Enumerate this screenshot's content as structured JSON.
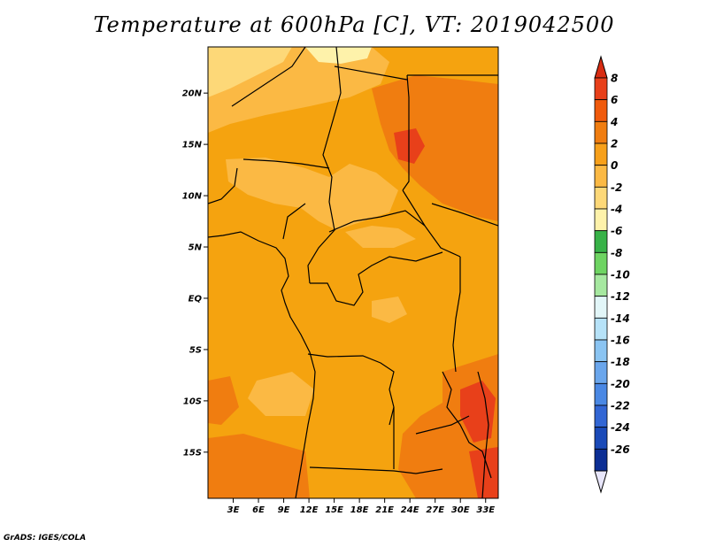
{
  "title": "Temperature at 600hPa [C], VT: 2019042500",
  "footer": "GrADS: IGES/COLA",
  "map": {
    "lon_labels": [
      "3E",
      "6E",
      "9E",
      "12E",
      "15E",
      "18E",
      "21E",
      "24E",
      "27E",
      "30E",
      "33E"
    ],
    "lat_labels": [
      "20N",
      "15N",
      "10N",
      "5N",
      "EQ",
      "5S",
      "10S",
      "15S"
    ],
    "lon_range": [
      0,
      34.5
    ],
    "lat_range": [
      -19.5,
      24.5
    ]
  },
  "colorbar": {
    "labels": [
      "8",
      "6",
      "4",
      "2",
      "0",
      "-2",
      "-4",
      "-6",
      "-8",
      "-10",
      "-12",
      "-14",
      "-16",
      "-18",
      "-20",
      "-22",
      "-24",
      "-26"
    ],
    "colors": [
      "#e8401a",
      "#f05a0c",
      "#f07d10",
      "#f7a01a",
      "#fbb944",
      "#fdd878",
      "#fef2aa",
      "#38b248",
      "#6ed462",
      "#a6e8a0",
      "#e2f6f8",
      "#b6e2f8",
      "#8ac4f2",
      "#6aa6ec",
      "#4a88e4",
      "#3266d4",
      "#1a4ab8",
      "#0c2e94",
      "#080a5e"
    ],
    "top_arrow_color": "#d82c12",
    "bottom_arrow_color": "#e8e6fa"
  },
  "fill_colors": {
    "base": "#f5a30f",
    "warm": "#f07d10",
    "hot": "#e8401a",
    "cool": "#fbb944",
    "cooler": "#fdd878",
    "coolest": "#fef2aa"
  }
}
